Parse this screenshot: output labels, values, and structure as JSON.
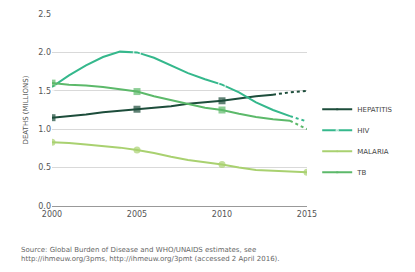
{
  "chart_data": {
    "type": "line",
    "y_label": "DEATHS (MILLIONS)",
    "annotations": [
      "Source: Global Burden of Disease and WHO/UNAIDS estimates, see",
      "http://ihmeuw.org/3pms, http://ihmeuw.org/3pmt (accessed 2 April 2016)."
    ],
    "x": [
      2000,
      2001,
      2002,
      2003,
      2004,
      2005,
      2006,
      2007,
      2008,
      2009,
      2010,
      2011,
      2012,
      2013,
      2014,
      2015
    ],
    "xlim": [
      2000,
      2015
    ],
    "xticks": [
      2000,
      2005,
      2010,
      2015
    ],
    "ylim": [
      0,
      2.5
    ],
    "yticks": [
      {
        "value": 0,
        "label": "0.0"
      },
      0.5,
      {
        "value": 1,
        "label": "1.0"
      },
      1.5,
      {
        "value": 2,
        "label": "2.0"
      },
      2.5
    ],
    "grid": true,
    "legend": "right",
    "series": [
      {
        "name": "HEPATITIS",
        "color": "#1d4d3b",
        "marker": "square",
        "line_style": "solid",
        "values": [
          1.15,
          1.17,
          1.19,
          1.22,
          1.24,
          1.26,
          1.28,
          1.3,
          1.33,
          1.35,
          1.37,
          1.4,
          1.43,
          1.45,
          null,
          null
        ]
      },
      {
        "name": "HEPATITIS",
        "color": "#1d4d3b",
        "marker": "none",
        "line_style": "dotted",
        "values": [
          null,
          null,
          null,
          null,
          null,
          null,
          null,
          null,
          null,
          null,
          null,
          null,
          null,
          1.45,
          1.48,
          1.5
        ]
      },
      {
        "name": "HIV",
        "color": "#35b88c",
        "marker": "circle-open",
        "line_style": "solid",
        "values": [
          1.55,
          1.7,
          1.83,
          1.94,
          2.01,
          2.0,
          1.93,
          1.83,
          1.73,
          1.65,
          1.58,
          1.48,
          1.35,
          1.25,
          1.17,
          null
        ]
      },
      {
        "name": "HIV",
        "color": "#35b88c",
        "marker": "none",
        "line_style": "dotted",
        "values": [
          null,
          null,
          null,
          null,
          null,
          null,
          null,
          null,
          null,
          null,
          null,
          null,
          null,
          null,
          1.17,
          1.1
        ]
      },
      {
        "name": "MALARIA",
        "color": "#a9d170",
        "marker": "circle",
        "line_style": "solid",
        "values": [
          0.83,
          0.82,
          0.8,
          0.78,
          0.76,
          0.73,
          0.69,
          0.64,
          0.6,
          0.57,
          0.54,
          0.5,
          0.47,
          0.46,
          0.45,
          0.44
        ]
      },
      {
        "name": "TB",
        "color": "#5cb96a",
        "marker": "square",
        "line_style": "solid",
        "values": [
          1.6,
          1.58,
          1.57,
          1.55,
          1.52,
          1.49,
          1.43,
          1.38,
          1.33,
          1.28,
          1.25,
          1.2,
          1.16,
          1.13,
          1.11,
          null
        ]
      },
      {
        "name": "TB",
        "color": "#5cb96a",
        "marker": "none",
        "line_style": "dotted",
        "values": [
          null,
          null,
          null,
          null,
          null,
          null,
          null,
          null,
          null,
          null,
          null,
          null,
          null,
          null,
          1.11,
          1.0
        ]
      }
    ]
  }
}
